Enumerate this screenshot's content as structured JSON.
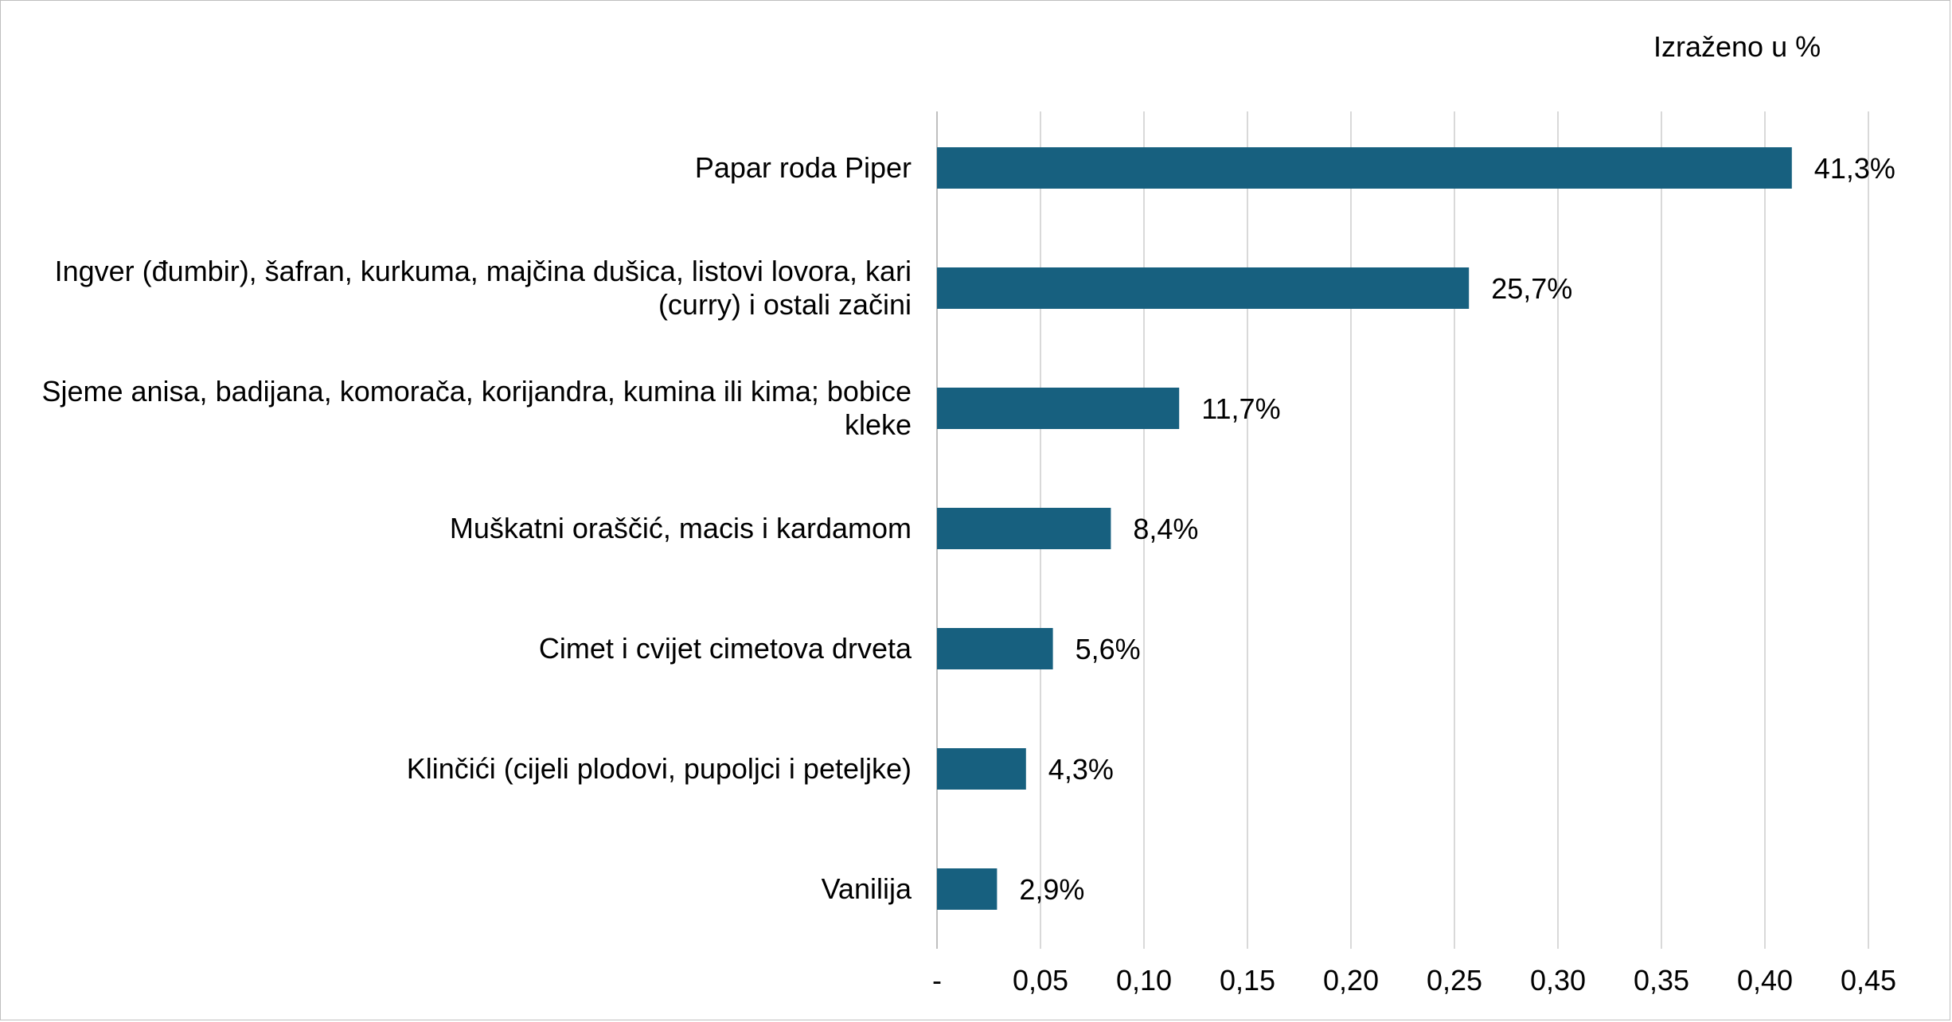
{
  "chart_data": {
    "type": "bar",
    "orientation": "horizontal",
    "unit_note": "Izraženo u %",
    "categories": [
      "Papar roda Piper",
      "Ingver (đumbir), šafran, kurkuma, majčina dušica, listovi lovora, kari (curry) i ostali začini",
      "Sjeme anisa, badijana, komorača, korijandra, kumina ili kima; bobice kleke",
      "Muškatni oraščić, macis i kardamom",
      "Cimet i cvijet cimetova drveta",
      "Klinčići (cijeli plodovi, pupoljci i peteljke)",
      "Vanilija"
    ],
    "values": [
      0.413,
      0.257,
      0.117,
      0.084,
      0.056,
      0.043,
      0.029
    ],
    "data_labels": [
      "41,3%",
      "25,7%",
      "11,7%",
      "8,4%",
      "5,6%",
      "4,3%",
      "2,9%"
    ],
    "xlim": [
      0,
      0.45
    ],
    "xticks": [
      0,
      0.05,
      0.1,
      0.15,
      0.2,
      0.25,
      0.3,
      0.35,
      0.4,
      0.45
    ],
    "xtick_labels": [
      "-",
      "0,05",
      "0,10",
      "0,15",
      "0,20",
      "0,25",
      "0,30",
      "0,35",
      "0,40",
      "0,45"
    ],
    "grid": "vertical",
    "legend": "none",
    "colors": {
      "bar": "#17607f",
      "grid": "#d9d9d9",
      "axis": "#bfbfbf",
      "text": "#000000"
    }
  }
}
